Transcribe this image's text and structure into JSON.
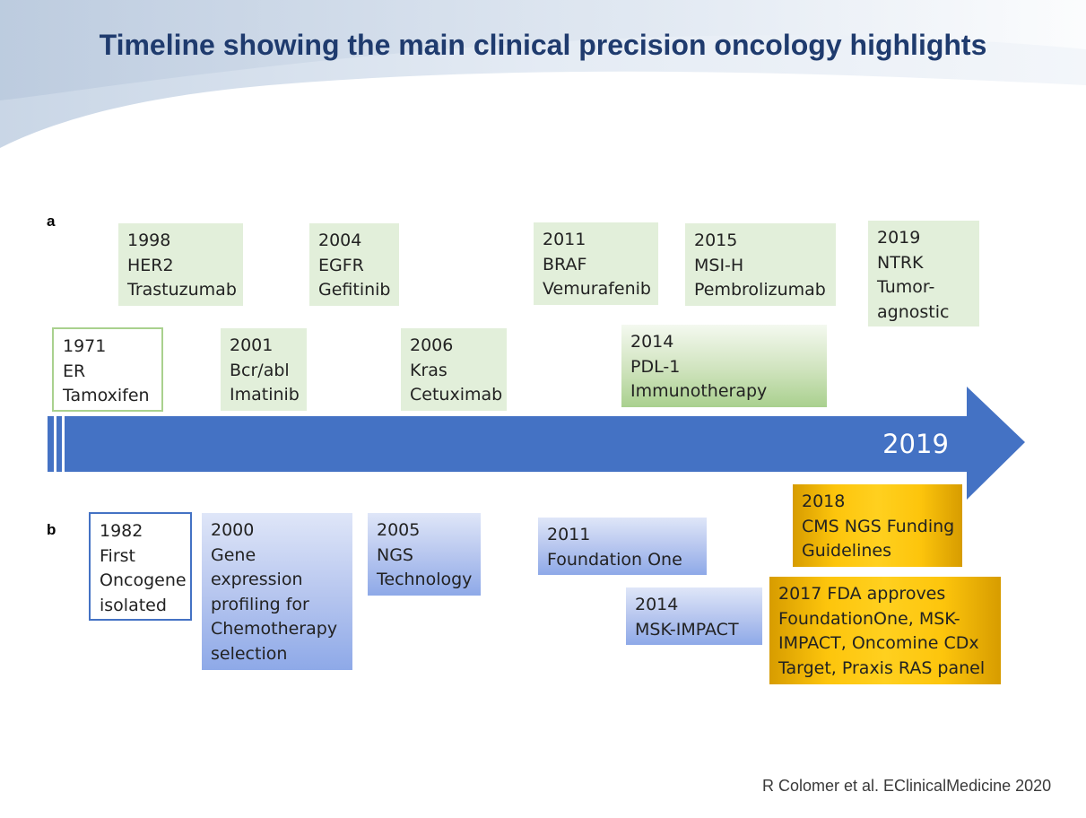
{
  "title": "Timeline showing the main clinical precision oncology highlights",
  "section_a": {
    "label": "a",
    "events": [
      {
        "year": "1971",
        "lines": [
          "ER",
          "Tamoxifen"
        ]
      },
      {
        "year": "1998",
        "lines": [
          "HER2",
          "Trastuzumab"
        ]
      },
      {
        "year": "2001",
        "lines": [
          "Bcr/abl",
          "Imatinib"
        ]
      },
      {
        "year": "2004",
        "lines": [
          "EGFR",
          "Gefitinib"
        ]
      },
      {
        "year": "2006",
        "lines": [
          "Kras",
          "Cetuximab"
        ]
      },
      {
        "year": "2011",
        "lines": [
          "BRAF",
          "Vemurafenib"
        ]
      },
      {
        "year": "2014",
        "lines": [
          "PDL-1",
          "Immunotherapy"
        ]
      },
      {
        "year": "2015",
        "lines": [
          "MSI-H",
          "Pembrolizumab"
        ]
      },
      {
        "year": "2019",
        "lines": [
          "NTRK",
          "Tumor-",
          "agnostic"
        ]
      }
    ]
  },
  "timeline": {
    "end_label": "2019"
  },
  "section_b": {
    "label": "b",
    "events": [
      {
        "year": "1982",
        "lines": [
          "First",
          "Oncogene",
          "isolated"
        ]
      },
      {
        "year": "2000",
        "lines": [
          "Gene",
          "expression",
          "profiling for",
          "Chemotherapy",
          "selection"
        ]
      },
      {
        "year": "2005",
        "lines": [
          "NGS",
          "Technology"
        ]
      },
      {
        "year": "2011",
        "lines": [
          "Foundation One"
        ]
      },
      {
        "year": "2014",
        "lines": [
          "MSK-IMPACT"
        ]
      },
      {
        "year": "2018",
        "lines": [
          "CMS NGS Funding",
          "Guidelines"
        ]
      },
      {
        "lines": [
          "2017 FDA approves",
          "FoundationOne, MSK-",
          "IMPACT, Oncomine CDx",
          "Target, Praxis RAS panel"
        ]
      }
    ]
  },
  "citation": "R Colomer et al. EClinicalMedicine 2020",
  "colors": {
    "title": "#1f3b6e",
    "arrow": "#4472c4",
    "green_box": "#e2efda",
    "blue_box": "#b4c6ee",
    "gold_box": "#ffc000"
  }
}
